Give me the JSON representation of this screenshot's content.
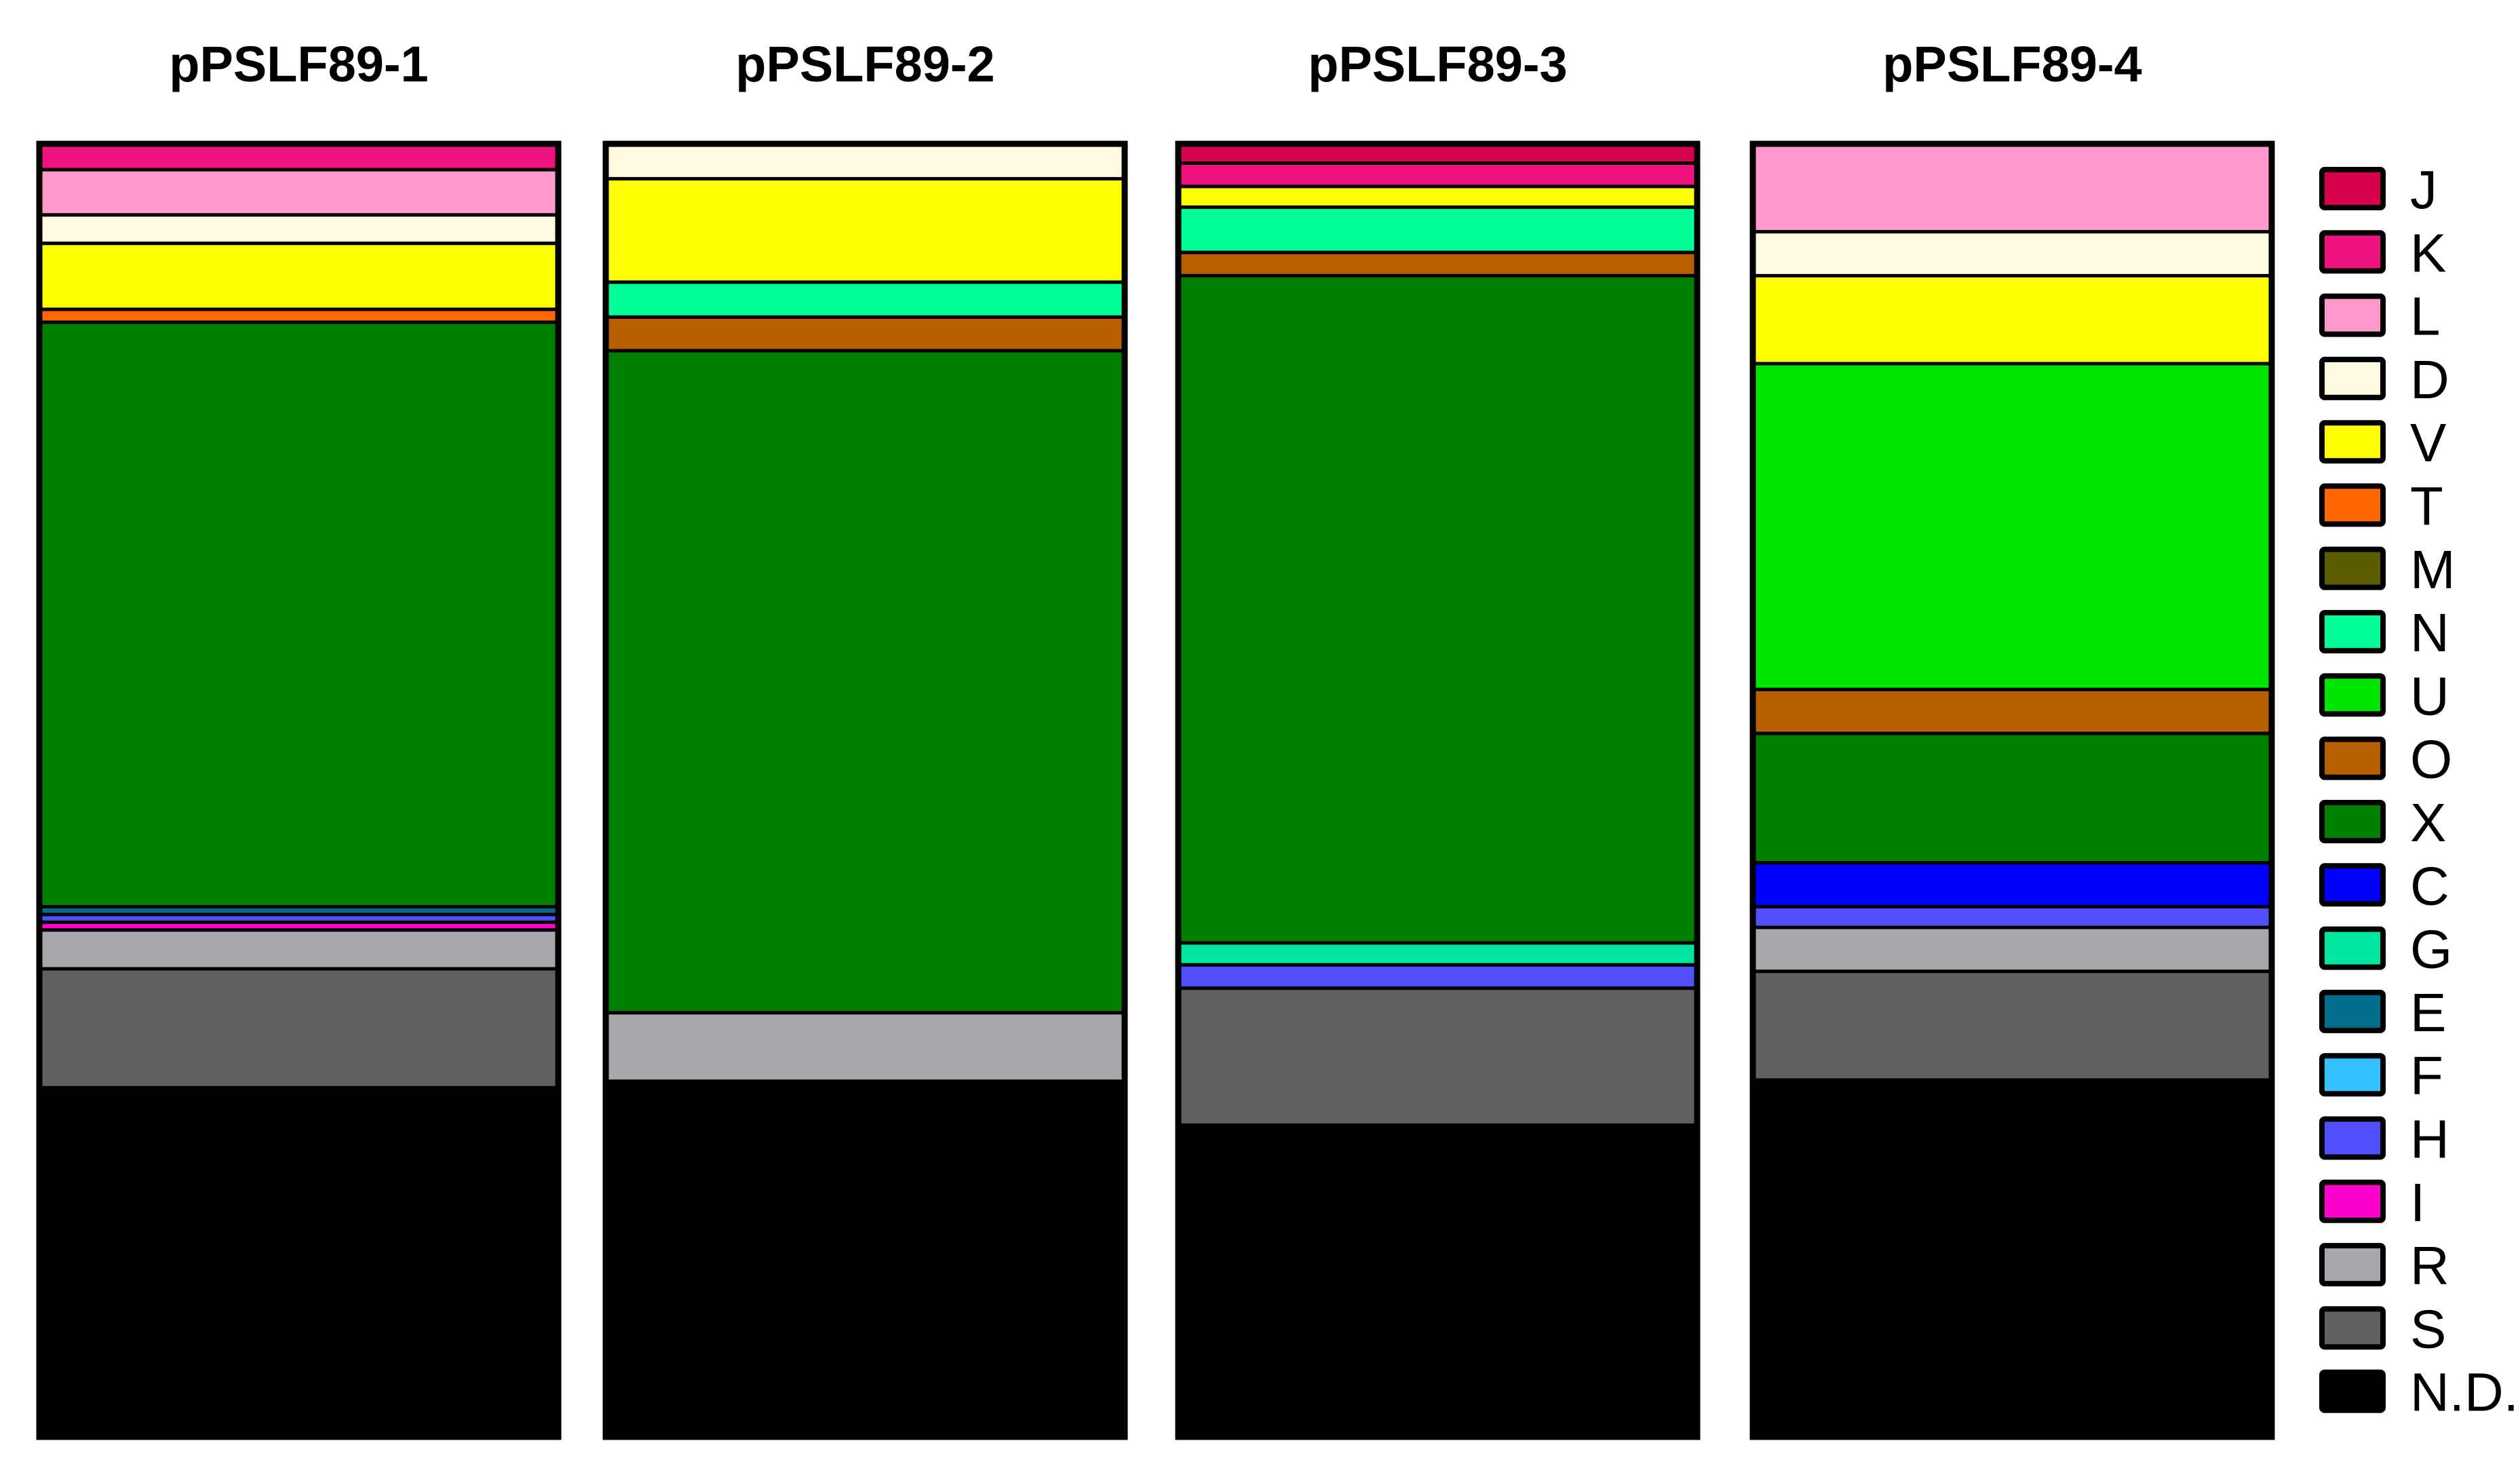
{
  "chart_data": {
    "type": "bar",
    "subtype": "100% stacked column",
    "categories": [
      "pPSLF89-1",
      "pPSLF89-2",
      "pPSLF89-3",
      "pPSLF89-4"
    ],
    "value_unit": "percent of total",
    "stack_order": "top-to-bottom follows legend order (J first, N.D. last)",
    "series": [
      {
        "name": "J",
        "color": "#D7004F",
        "values": [
          0.0,
          0.0,
          1.5,
          0.0
        ]
      },
      {
        "name": "K",
        "color": "#F0127F",
        "values": [
          2.0,
          0.0,
          1.8,
          0.0
        ]
      },
      {
        "name": "L",
        "color": "#FF99CC",
        "values": [
          3.5,
          0.0,
          0.0,
          6.8
        ]
      },
      {
        "name": "D",
        "color": "#FFFBE0",
        "values": [
          2.2,
          2.7,
          0.0,
          3.4
        ]
      },
      {
        "name": "V",
        "color": "#FFFF00",
        "values": [
          5.1,
          8.0,
          1.6,
          6.8
        ]
      },
      {
        "name": "T",
        "color": "#FF6600",
        "values": [
          1.0,
          0.0,
          0.0,
          0.0
        ]
      },
      {
        "name": "M",
        "color": "#5C5C00",
        "values": [
          0.0,
          0.0,
          0.0,
          0.0
        ]
      },
      {
        "name": "N",
        "color": "#00FF99",
        "values": [
          0.0,
          2.7,
          3.5,
          0.0
        ]
      },
      {
        "name": "U",
        "color": "#00E600",
        "values": [
          0.0,
          0.0,
          0.0,
          25.2
        ]
      },
      {
        "name": "O",
        "color": "#B86000",
        "values": [
          0.0,
          2.6,
          1.8,
          3.4
        ]
      },
      {
        "name": "X",
        "color": "#008000",
        "values": [
          45.2,
          51.2,
          51.6,
          10.0
        ]
      },
      {
        "name": "C",
        "color": "#0000FF",
        "values": [
          0.0,
          0.0,
          0.0,
          3.4
        ]
      },
      {
        "name": "G",
        "color": "#00E6A0",
        "values": [
          0.0,
          0.0,
          1.7,
          0.0
        ]
      },
      {
        "name": "E",
        "color": "#006E8C",
        "values": [
          0.6,
          0.0,
          0.0,
          0.0
        ]
      },
      {
        "name": "F",
        "color": "#33C0FF",
        "values": [
          0.0,
          0.0,
          0.0,
          0.0
        ]
      },
      {
        "name": "H",
        "color": "#5050FF",
        "values": [
          0.6,
          0.0,
          1.8,
          1.6
        ]
      },
      {
        "name": "I",
        "color": "#FF00CC",
        "values": [
          0.6,
          0.0,
          0.0,
          0.0
        ]
      },
      {
        "name": "R",
        "color": "#A8A8AC",
        "values": [
          3.0,
          5.3,
          0.0,
          3.4
        ]
      },
      {
        "name": "S",
        "color": "#606060",
        "values": [
          9.2,
          0.0,
          10.6,
          8.4
        ]
      },
      {
        "name": "N.D.",
        "color": "#000000",
        "values": [
          27.0,
          27.5,
          24.1,
          27.6
        ]
      }
    ],
    "legend_placement": "right",
    "axes_visible": false,
    "grid": false
  }
}
